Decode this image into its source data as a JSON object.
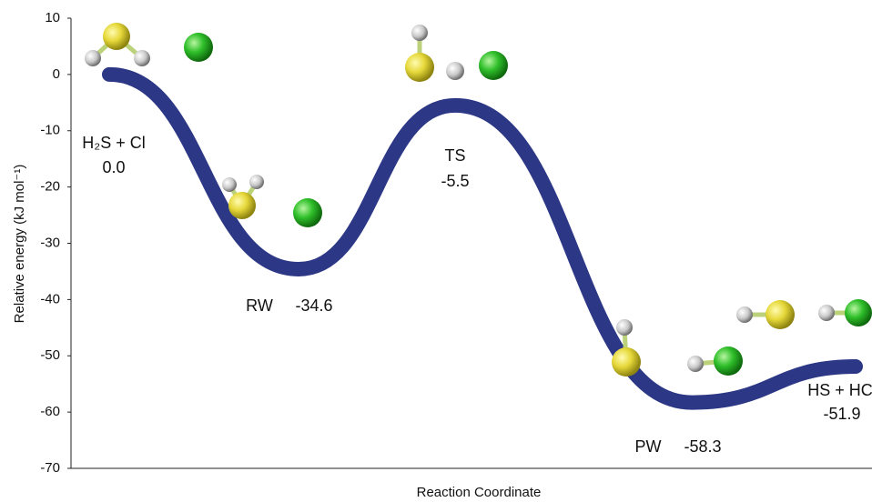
{
  "chart_data": {
    "type": "line",
    "y_label": "Relative energy (kJ mol⁻¹)",
    "x_label": "Reaction Coordinate",
    "categories": [
      "H₂S + Cl",
      "RW",
      "TS",
      "PW",
      "HS + HCl"
    ],
    "values": [
      0.0,
      -34.6,
      -5.5,
      -58.3,
      -51.9
    ],
    "value_labels": [
      "0.0",
      "-34.6",
      "-5.5",
      "-58.3",
      "-51.9"
    ],
    "color": "#2c3786",
    "ylim": [
      -70,
      10
    ],
    "yticks": [
      10,
      0,
      -10,
      -20,
      -30,
      -40,
      -50,
      -60,
      -70
    ]
  }
}
